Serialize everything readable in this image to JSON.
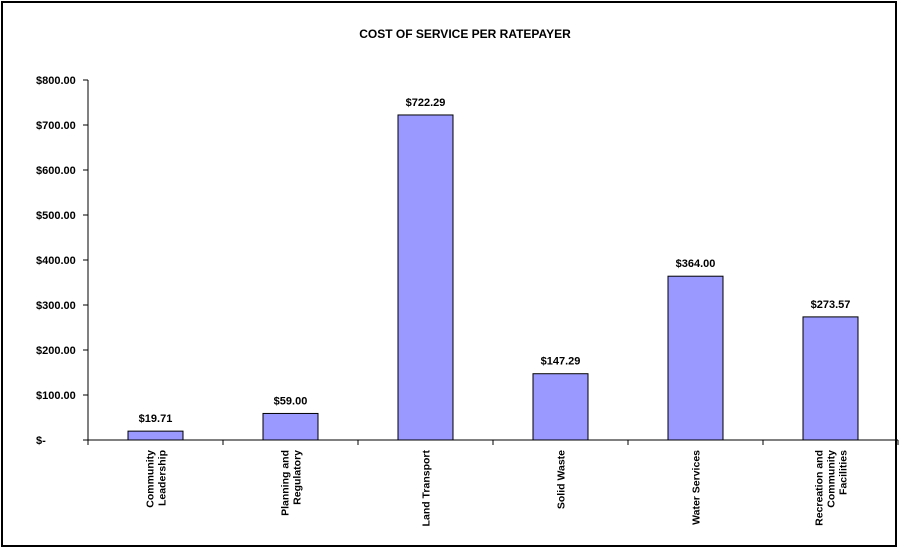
{
  "chart_data": {
    "type": "bar",
    "title": "COST OF SERVICE PER RATEPAYER",
    "xlabel": "",
    "ylabel": "",
    "ylim": [
      0,
      800
    ],
    "grid": false,
    "legend": "none",
    "y_ticks": [
      {
        "value": 0,
        "label": "$-"
      },
      {
        "value": 100,
        "label": "$100.00"
      },
      {
        "value": 200,
        "label": "$200.00"
      },
      {
        "value": 300,
        "label": "$300.00"
      },
      {
        "value": 400,
        "label": "$400.00"
      },
      {
        "value": 500,
        "label": "$500.00"
      },
      {
        "value": 600,
        "label": "$600.00"
      },
      {
        "value": 700,
        "label": "$700.00"
      },
      {
        "value": 800,
        "label": "$800.00"
      }
    ],
    "categories": [
      [
        "Community",
        "Leadership"
      ],
      [
        "Planning and",
        "Regulatory"
      ],
      [
        "Land Transport"
      ],
      [
        "Solid Waste"
      ],
      [
        "Water Services"
      ],
      [
        "Recreation and",
        "Community",
        "Facilities"
      ]
    ],
    "values": [
      19.71,
      59.0,
      722.29,
      147.29,
      364.0,
      273.57
    ],
    "data_labels": [
      "$19.71",
      "$59.00",
      "$722.29",
      "$147.29",
      "$364.00",
      "$273.57"
    ],
    "colors": {
      "bar_fill": "#9999ff",
      "bar_stroke": "#000000"
    }
  }
}
